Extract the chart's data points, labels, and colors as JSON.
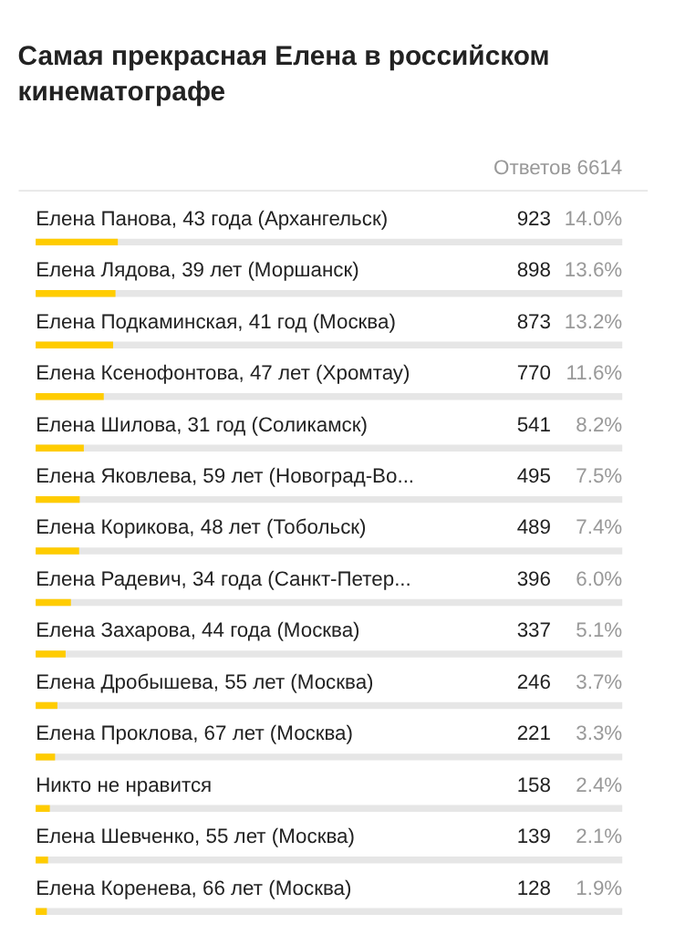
{
  "chart_data": {
    "type": "bar",
    "orientation": "horizontal",
    "title": "Самая прекрасная Елена в российском кинематографе",
    "subtitle": "Ответов 6614",
    "categories": [
      "Елена Панова, 43 года (Архангельск)",
      "Елена Лядова, 39 лет (Моршанск)",
      "Елена Подкаминская, 41 год (Москва)",
      "Елена Ксенофонтова, 47 лет (Хромтау)",
      "Елена Шилова, 31 год (Соликамск)",
      "Елена Яковлева, 59 лет (Новоград-Во...",
      "Елена Корикова, 48 лет (Тобольск)",
      "Елена Радевич, 34 года (Санкт-Петер...",
      "Елена Захарова, 44 года (Москва)",
      "Елена Дробышева, 55 лет (Москва)",
      "Елена Проклова, 67 лет (Москва)",
      "Никто не нравится",
      "Елена Шевченко, 55 лет (Москва)",
      "Елена Коренева, 66 лет (Москва)"
    ],
    "values": [
      14.0,
      13.6,
      13.2,
      11.6,
      8.2,
      7.5,
      7.4,
      6.0,
      5.1,
      3.7,
      3.3,
      2.4,
      2.1,
      1.9
    ],
    "value_labels": [
      "14.0%",
      "13.6%",
      "13.2%",
      "11.6%",
      "8.2%",
      "7.5%",
      "7.4%",
      "6.0%",
      "5.1%",
      "3.7%",
      "3.3%",
      "2.4%",
      "2.1%",
      "1.9%"
    ],
    "annotations": [
      "923",
      "898",
      "873",
      "770",
      "541",
      "495",
      "489",
      "396",
      "337",
      "246",
      "221",
      "158",
      "139",
      "128"
    ],
    "color": "#ffcc00",
    "xlim": [
      0,
      100
    ],
    "tick_labels": false
  }
}
